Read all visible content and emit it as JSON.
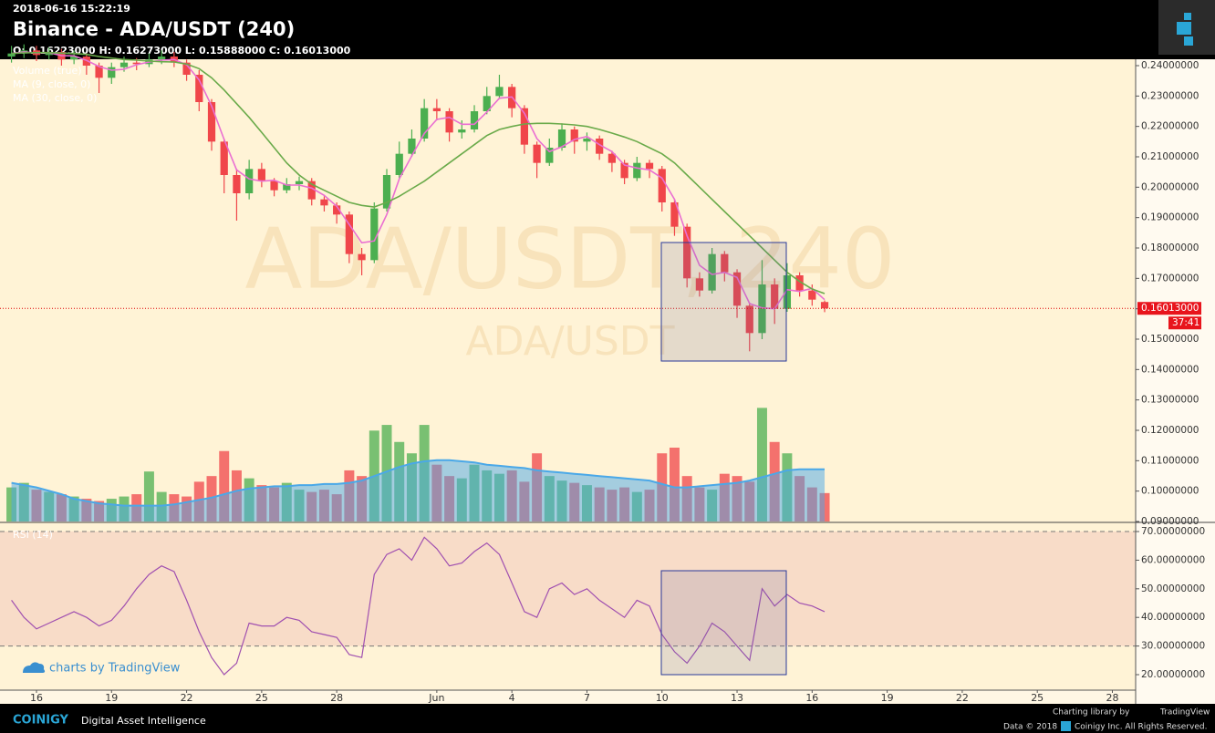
{
  "header": {
    "timestamp": "2018-06-16 15:22:19",
    "title": "Binance - ADA/USDT (240)",
    "ohlc": "O: 0.16223000 H: 0.16273000 L: 0.15888000 C: 0.16013000"
  },
  "watermark": {
    "main": "ADA/USDT, 240",
    "sub": "ADA/USDT"
  },
  "branding": "charts by TradingView",
  "chart_data": [
    {
      "type": "candlestick",
      "x": [
        -1,
        -0.5,
        0,
        0.5,
        1,
        1.5,
        2,
        2.5,
        3,
        3.5,
        4,
        4.5,
        5,
        5.5,
        6,
        6.5,
        7,
        7.5,
        8,
        8.5,
        9,
        9.5,
        10,
        10.5,
        11,
        11.5,
        12,
        12.5,
        13,
        13.5,
        14,
        14.5,
        15,
        15.5,
        16,
        16.5,
        17,
        17.5,
        18,
        18.5,
        19,
        19.5,
        20,
        20.5,
        21,
        21.5,
        22,
        22.5,
        23,
        23.5,
        24,
        24.5,
        25,
        25.5,
        26,
        26.5,
        27,
        27.5,
        28,
        28.5,
        29,
        29.5,
        30,
        30.5,
        31,
        31.5
      ],
      "open": [
        0.243,
        0.244,
        0.245,
        0.2435,
        0.2445,
        0.242,
        0.243,
        0.24,
        0.236,
        0.2395,
        0.241,
        0.2405,
        0.242,
        0.243,
        0.241,
        0.237,
        0.228,
        0.215,
        0.204,
        0.198,
        0.206,
        0.202,
        0.199,
        0.201,
        0.202,
        0.196,
        0.194,
        0.191,
        0.178,
        0.176,
        0.193,
        0.204,
        0.211,
        0.216,
        0.226,
        0.225,
        0.218,
        0.219,
        0.225,
        0.23,
        0.233,
        0.226,
        0.214,
        0.208,
        0.213,
        0.219,
        0.215,
        0.216,
        0.211,
        0.208,
        0.203,
        0.208,
        0.206,
        0.195,
        0.187,
        0.17,
        0.166,
        0.178,
        0.172,
        0.161,
        0.152,
        0.168,
        0.16,
        0.171,
        0.166,
        0.16223
      ],
      "high": [
        0.2465,
        0.247,
        0.2465,
        0.246,
        0.2455,
        0.245,
        0.244,
        0.241,
        0.241,
        0.243,
        0.2425,
        0.244,
        0.245,
        0.2445,
        0.242,
        0.2385,
        0.229,
        0.216,
        0.206,
        0.209,
        0.208,
        0.203,
        0.203,
        0.2035,
        0.203,
        0.197,
        0.195,
        0.192,
        0.18,
        0.195,
        0.206,
        0.215,
        0.219,
        0.229,
        0.229,
        0.226,
        0.222,
        0.227,
        0.233,
        0.237,
        0.234,
        0.227,
        0.215,
        0.216,
        0.221,
        0.22,
        0.218,
        0.217,
        0.212,
        0.209,
        0.21,
        0.209,
        0.207,
        0.196,
        0.188,
        0.172,
        0.18,
        0.179,
        0.173,
        0.162,
        0.176,
        0.17,
        0.175,
        0.172,
        0.168,
        0.16273
      ],
      "low": [
        0.241,
        0.2425,
        0.2415,
        0.242,
        0.24,
        0.2405,
        0.237,
        0.231,
        0.234,
        0.238,
        0.2385,
        0.2395,
        0.2405,
        0.2395,
        0.235,
        0.225,
        0.212,
        0.198,
        0.189,
        0.196,
        0.2,
        0.197,
        0.198,
        0.199,
        0.194,
        0.192,
        0.188,
        0.175,
        0.171,
        0.175,
        0.192,
        0.203,
        0.21,
        0.215,
        0.222,
        0.215,
        0.216,
        0.218,
        0.224,
        0.229,
        0.223,
        0.211,
        0.203,
        0.207,
        0.212,
        0.211,
        0.212,
        0.209,
        0.205,
        0.201,
        0.202,
        0.203,
        0.192,
        0.184,
        0.167,
        0.164,
        0.165,
        0.169,
        0.157,
        0.146,
        0.15,
        0.155,
        0.159,
        0.164,
        0.161,
        0.15888
      ],
      "close": [
        0.244,
        0.245,
        0.2435,
        0.2445,
        0.242,
        0.243,
        0.24,
        0.236,
        0.2395,
        0.241,
        0.2405,
        0.242,
        0.243,
        0.241,
        0.237,
        0.228,
        0.215,
        0.204,
        0.198,
        0.206,
        0.202,
        0.199,
        0.201,
        0.202,
        0.196,
        0.194,
        0.191,
        0.178,
        0.176,
        0.193,
        0.204,
        0.211,
        0.216,
        0.226,
        0.225,
        0.218,
        0.219,
        0.225,
        0.23,
        0.233,
        0.226,
        0.214,
        0.208,
        0.213,
        0.219,
        0.215,
        0.216,
        0.211,
        0.208,
        0.203,
        0.208,
        0.206,
        0.195,
        0.187,
        0.17,
        0.166,
        0.178,
        0.172,
        0.161,
        0.152,
        0.168,
        0.16,
        0.171,
        0.166,
        0.163,
        0.16013
      ],
      "up_color": "#4caf50",
      "down_color": "#f0464a",
      "series": [
        {
          "name": "MA (9, close, 0)",
          "color": "#ea6fd2",
          "values": [
            0.244,
            0.2445,
            0.2442,
            0.2443,
            0.2433,
            0.2432,
            0.2417,
            0.2397,
            0.2385,
            0.2388,
            0.2403,
            0.2412,
            0.2418,
            0.242,
            0.2403,
            0.2353,
            0.2267,
            0.2157,
            0.2057,
            0.2027,
            0.202,
            0.2023,
            0.2007,
            0.2007,
            0.1997,
            0.1973,
            0.1937,
            0.1877,
            0.1817,
            0.1823,
            0.191,
            0.2027,
            0.2103,
            0.2177,
            0.2223,
            0.223,
            0.2207,
            0.2207,
            0.2247,
            0.2293,
            0.2297,
            0.2243,
            0.216,
            0.2117,
            0.2133,
            0.2157,
            0.2167,
            0.214,
            0.2117,
            0.2073,
            0.2063,
            0.2057,
            0.203,
            0.196,
            0.184,
            0.1743,
            0.1713,
            0.172,
            0.1703,
            0.1617,
            0.1603,
            0.16,
            0.1663,
            0.1657,
            0.1667,
            0.163
          ]
        },
        {
          "name": "MA (30, close, 0)",
          "color": "#6aaa4a",
          "values": [
            0.244,
            0.2442,
            0.2443,
            0.2443,
            0.2441,
            0.244,
            0.2437,
            0.243,
            0.2425,
            0.242,
            0.2418,
            0.2415,
            0.2413,
            0.2412,
            0.2405,
            0.239,
            0.236,
            0.232,
            0.2275,
            0.223,
            0.218,
            0.213,
            0.208,
            0.204,
            0.201,
            0.199,
            0.197,
            0.195,
            0.194,
            0.1935,
            0.195,
            0.197,
            0.1995,
            0.202,
            0.205,
            0.208,
            0.211,
            0.214,
            0.217,
            0.219,
            0.22,
            0.2208,
            0.221,
            0.221,
            0.2208,
            0.2205,
            0.22,
            0.219,
            0.2178,
            0.2165,
            0.215,
            0.213,
            0.211,
            0.208,
            0.204,
            0.2,
            0.196,
            0.192,
            0.188,
            0.184,
            0.18,
            0.176,
            0.172,
            0.169,
            0.1665,
            0.165
          ]
        }
      ],
      "xlim": [
        -1.458,
        43.93
      ],
      "xticks": [
        {
          "value": 0,
          "label": "16"
        },
        {
          "value": 3,
          "label": "19"
        },
        {
          "value": 6,
          "label": "22"
        },
        {
          "value": 9,
          "label": "25"
        },
        {
          "value": 12,
          "label": "28"
        },
        {
          "value": 16,
          "label": "Jun"
        },
        {
          "value": 19,
          "label": "4"
        },
        {
          "value": 22,
          "label": "7"
        },
        {
          "value": 25,
          "label": "10"
        },
        {
          "value": 28,
          "label": "13"
        },
        {
          "value": 31,
          "label": "16"
        },
        {
          "value": 34,
          "label": "19"
        },
        {
          "value": 37,
          "label": "22"
        },
        {
          "value": 40,
          "label": "25"
        },
        {
          "value": 43,
          "label": "28"
        }
      ],
      "ylim": [
        0.09,
        0.2421
      ],
      "yticks": [
        {
          "value": 0.09,
          "label": "0.09000000"
        },
        {
          "value": 0.1,
          "label": "0.10000000"
        },
        {
          "value": 0.11,
          "label": "0.11000000"
        },
        {
          "value": 0.12,
          "label": "0.12000000"
        },
        {
          "value": 0.13,
          "label": "0.13000000"
        },
        {
          "value": 0.14,
          "label": "0.14000000"
        },
        {
          "value": 0.15,
          "label": "0.15000000"
        },
        {
          "value": 0.16,
          "label": "0.16000000"
        },
        {
          "value": 0.17,
          "label": "0.17000000"
        },
        {
          "value": 0.18,
          "label": "0.18000000"
        },
        {
          "value": 0.19,
          "label": "0.19000000"
        },
        {
          "value": 0.2,
          "label": "0.20000000"
        },
        {
          "value": 0.21,
          "label": "0.21000000"
        },
        {
          "value": 0.22,
          "label": "0.22000000"
        },
        {
          "value": 0.23,
          "label": "0.23000000"
        },
        {
          "value": 0.24,
          "label": "0.24000000"
        }
      ],
      "last_price": {
        "value": 0.16013,
        "label": "0.16013000"
      },
      "countdown": "37:41"
    },
    {
      "type": "bar",
      "title": "Volume (true)",
      "x": [
        -1,
        -0.5,
        0,
        0.5,
        1,
        1.5,
        2,
        2.5,
        3,
        3.5,
        4,
        4.5,
        5,
        5.5,
        6,
        6.5,
        7,
        7.5,
        8,
        8.5,
        9,
        9.5,
        10,
        10.5,
        11,
        11.5,
        12,
        12.5,
        13,
        13.5,
        14,
        14.5,
        15,
        15.5,
        16,
        16.5,
        17,
        17.5,
        18,
        18.5,
        19,
        19.5,
        20,
        20.5,
        21,
        21.5,
        22,
        22.5,
        23,
        23.5,
        24,
        24.5,
        25,
        25.5,
        26,
        26.5,
        27,
        27.5,
        28,
        28.5,
        29,
        29.5,
        30,
        30.5,
        31,
        31.5
      ],
      "values": [
        30,
        34,
        28,
        26,
        24,
        22,
        20,
        18,
        20,
        22,
        24,
        44,
        26,
        24,
        22,
        35,
        40,
        62,
        45,
        38,
        32,
        30,
        34,
        28,
        26,
        28,
        24,
        45,
        40,
        80,
        85,
        70,
        60,
        85,
        50,
        40,
        38,
        50,
        45,
        42,
        45,
        35,
        60,
        40,
        36,
        34,
        32,
        30,
        28,
        30,
        26,
        28,
        60,
        65,
        40,
        30,
        28,
        42,
        40,
        35,
        100,
        70,
        60,
        40,
        30,
        25
      ],
      "ma": {
        "color": "#4aa8e8",
        "values": [
          34,
          32,
          30,
          27,
          24,
          20,
          18,
          16,
          15,
          14,
          14,
          14,
          14,
          15,
          17,
          19,
          21,
          24,
          27,
          29,
          30,
          31,
          31,
          32,
          32,
          33,
          33,
          34,
          36,
          40,
          44,
          48,
          51,
          53,
          54,
          54,
          53,
          52,
          50,
          49,
          48,
          47,
          45,
          44,
          43,
          42,
          41,
          40,
          39,
          38,
          37,
          36,
          33,
          30,
          30,
          31,
          32,
          33,
          34,
          36,
          39,
          42,
          45,
          46,
          46,
          46
        ]
      },
      "ylim": [
        0,
        130
      ]
    },
    {
      "type": "line",
      "x": [
        -1,
        -0.5,
        0,
        0.5,
        1,
        1.5,
        2,
        2.5,
        3,
        3.5,
        4,
        4.5,
        5,
        5.5,
        6,
        6.5,
        7,
        7.5,
        8,
        8.5,
        9,
        9.5,
        10,
        10.5,
        11,
        11.5,
        12,
        12.5,
        13,
        13.5,
        14,
        14.5,
        15,
        15.5,
        16,
        16.5,
        17,
        17.5,
        18,
        18.5,
        19,
        19.5,
        20,
        20.5,
        21,
        21.5,
        22,
        22.5,
        23,
        23.5,
        24,
        24.5,
        25,
        25.5,
        26,
        26.5,
        27,
        27.5,
        28,
        28.5,
        29,
        29.5,
        30,
        30.5,
        31,
        31.5
      ],
      "series": [
        {
          "name": "RSI (14)",
          "color": "#a050b0",
          "values": [
            46,
            40,
            36,
            38,
            40,
            42,
            40,
            37,
            39,
            44,
            50,
            55,
            58,
            56,
            46,
            35,
            26,
            20,
            24,
            38,
            37,
            37,
            40,
            39,
            35,
            34,
            33,
            27,
            26,
            55,
            62,
            64,
            60,
            68,
            64,
            58,
            59,
            63,
            66,
            62,
            52,
            42,
            40,
            50,
            52,
            48,
            50,
            46,
            43,
            40,
            46,
            44,
            34,
            28,
            24,
            30,
            38,
            35,
            30,
            25,
            50,
            44,
            48,
            45,
            44,
            42
          ]
        }
      ],
      "band": [
        30,
        70
      ],
      "ylim": [
        14.9,
        73.2
      ],
      "yticks": [
        {
          "value": 20,
          "label": "20.00000000"
        },
        {
          "value": 30,
          "label": "30.00000000"
        },
        {
          "value": 40,
          "label": "40.00000000"
        },
        {
          "value": 50,
          "label": "50.00000000"
        },
        {
          "value": 60,
          "label": "60.00000000"
        },
        {
          "value": 70,
          "label": "70.00000000"
        }
      ]
    }
  ],
  "footer": {
    "brand": "COINIGY",
    "tagline": "Digital Asset Intelligence",
    "library": "Charting library by",
    "library_name": "TradingView",
    "data": "Data © 2018",
    "rights": "Coinigy Inc. All Rights Reserved."
  }
}
